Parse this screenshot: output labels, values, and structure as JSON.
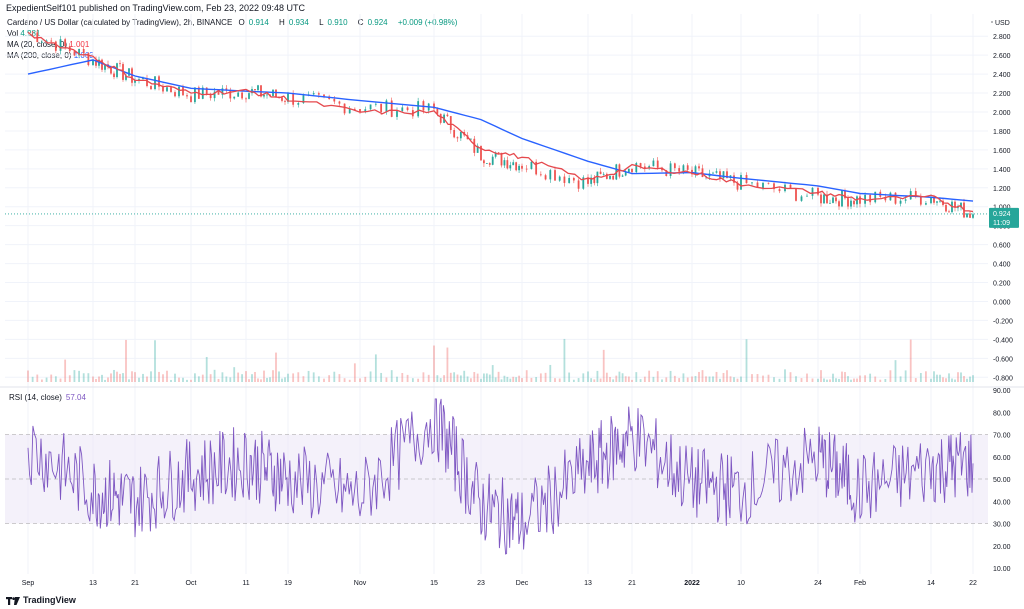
{
  "header": {
    "publish_text": "ExpedientSelf101 published on TradingView.com, Feb 23, 2022 09:48 UTC"
  },
  "legend": {
    "symbol_title": "Cardano / US Dollar (calculated by TradingView), 2h, BINANCE",
    "open_label": "O",
    "open_value": "0.914",
    "high_label": "H",
    "high_value": "0.934",
    "low_label": "L",
    "low_value": "0.910",
    "close_label": "C",
    "close_value": "0.924",
    "change_value": "+0.009 (+0.98%)",
    "vol_label": "Vol",
    "vol_value": "4.281",
    "ma20_label": "MA (20, close, 0)",
    "ma20_value": "1.001",
    "ma200_label": "MA (200, close, 0)",
    "ma200_value": "1.063"
  },
  "rsi_legend": {
    "label": "RSI (14, close)",
    "value": "57.04"
  },
  "price_tag": {
    "value": "0.924",
    "countdown": "11:09"
  },
  "footer": {
    "brand": "TradingView"
  },
  "colors": {
    "candle_up": "#26a69a",
    "candle_down": "#ef5350",
    "ma20": "#e5484d",
    "ma200": "#2962ff",
    "rsi": "#7e57c2",
    "rsi_band": "#ede7f6",
    "grid": "#f0f3fa",
    "price_tag": "#26a69a"
  },
  "chart_data": [
    {
      "type": "line",
      "title": "Cardano / US Dollar (calculated by TradingView), 2h, BINANCE",
      "x_ticks": [
        "Sep",
        "13",
        "21",
        "Oct",
        "11",
        "19",
        "Nov",
        "15",
        "23",
        "Dec",
        "13",
        "21",
        "2022",
        "10",
        "24",
        "Feb",
        "14",
        "22"
      ],
      "y_ticks": [
        "2.800",
        "2.600",
        "2.400",
        "2.200",
        "2.000",
        "1.800",
        "1.600",
        "1.400",
        "1.200",
        "1.000",
        "0.800",
        "0.600",
        "0.400",
        "0.200",
        "0.000",
        "-0.200",
        "-0.400",
        "-0.600",
        "-0.800"
      ],
      "y_unit": "USD",
      "ylim": [
        -0.85,
        2.95
      ],
      "grid": true,
      "legend_placement": "top-left",
      "series": [
        {
          "name": "Cardano / US Dollar",
          "style": "candles",
          "x": [
            "Sep",
            "13",
            "21",
            "Oct",
            "11",
            "19",
            "Nov",
            "15",
            "23",
            "Dec",
            "13",
            "21",
            "2022",
            "10",
            "24",
            "Feb",
            "14",
            "22"
          ],
          "values": [
            2.85,
            2.55,
            2.35,
            2.18,
            2.22,
            2.15,
            2.05,
            2.02,
            1.55,
            1.45,
            1.25,
            1.45,
            1.35,
            1.25,
            1.1,
            1.08,
            1.1,
            0.92
          ]
        },
        {
          "name": "MA (20, close, 0)",
          "style": "line",
          "x": [
            "Sep",
            "13",
            "21",
            "Oct",
            "11",
            "19",
            "Nov",
            "15",
            "23",
            "Dec",
            "13",
            "21",
            "2022",
            "10",
            "24",
            "Feb",
            "14",
            "22"
          ],
          "values": [
            2.82,
            2.58,
            2.35,
            2.2,
            2.22,
            2.14,
            2.0,
            2.0,
            1.62,
            1.52,
            1.28,
            1.42,
            1.36,
            1.24,
            1.15,
            1.08,
            1.1,
            0.95
          ]
        },
        {
          "name": "MA (200, close, 0)",
          "style": "line",
          "x": [
            "Sep",
            "13",
            "21",
            "Oct",
            "11",
            "19",
            "Nov",
            "15",
            "23",
            "Dec",
            "13",
            "21",
            "2022",
            "10",
            "24",
            "Feb",
            "14",
            "22"
          ],
          "values": [
            2.4,
            2.55,
            2.38,
            2.25,
            2.22,
            2.2,
            2.12,
            2.05,
            1.92,
            1.72,
            1.48,
            1.35,
            1.36,
            1.3,
            1.22,
            1.14,
            1.1,
            1.06
          ]
        }
      ]
    },
    {
      "type": "line",
      "title": "RSI (14, close)",
      "y_ticks": [
        "90.00",
        "80.00",
        "70.00",
        "60.00",
        "50.00",
        "40.00",
        "30.00",
        "20.00",
        "10.00"
      ],
      "ylim": [
        10,
        90
      ],
      "bands": {
        "upper": 70,
        "middle": 50,
        "lower": 30
      },
      "series": [
        {
          "name": "RSI (14, close)",
          "x": [
            "Sep",
            "13",
            "21",
            "Oct",
            "11",
            "19",
            "Nov",
            "15",
            "23",
            "Dec",
            "13",
            "21",
            "2022",
            "10",
            "24",
            "Feb",
            "14",
            "22"
          ],
          "values": [
            65,
            45,
            40,
            52,
            58,
            50,
            42,
            78,
            38,
            30,
            55,
            70,
            48,
            45,
            60,
            45,
            55,
            57
          ]
        }
      ]
    }
  ]
}
